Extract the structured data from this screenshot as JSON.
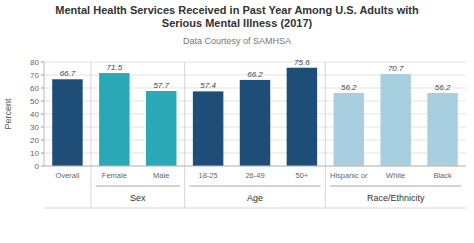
{
  "chart_data": {
    "type": "bar",
    "title": "Mental Health Services Received in Past Year Among U.S. Adults with\nSerious Mental Illness (2017)",
    "subtitle": "Data Courtesy of SAMHSA",
    "y_label": "Percent",
    "categories": [
      "Overall",
      "Female",
      "Male",
      "18-25",
      "26-49",
      "50+",
      "Hispanic or",
      "White",
      "Black"
    ],
    "values": [
      66.7,
      71.5,
      57.7,
      57.4,
      66.2,
      75.6,
      56.2,
      70.7,
      56.2
    ],
    "colors": [
      "#1e4d78",
      "#2ba8b5",
      "#2ba8b5",
      "#1e4d78",
      "#1e4d78",
      "#1e4d78",
      "#a8cfe0",
      "#a8cfe0",
      "#a8cfe0"
    ],
    "groups": [
      {
        "label": "Sex",
        "start": 1,
        "end": 2
      },
      {
        "label": "Age",
        "start": 3,
        "end": 5
      },
      {
        "label": "Race/Ethnicity",
        "start": 6,
        "end": 8
      }
    ],
    "ylim": [
      0,
      80
    ],
    "yticks": [
      0,
      10,
      20,
      30,
      40,
      50,
      60,
      70,
      80
    ],
    "grid": true,
    "data_labels": true
  }
}
